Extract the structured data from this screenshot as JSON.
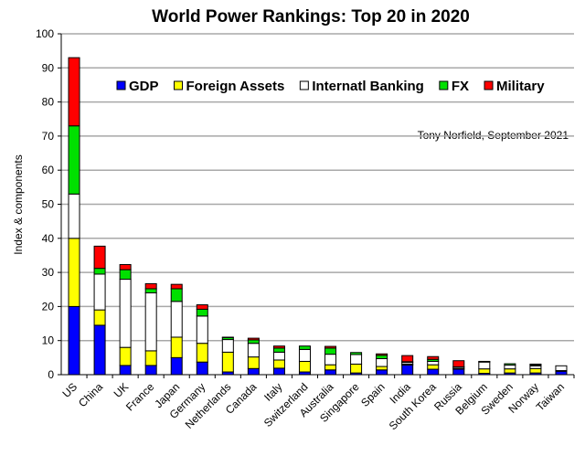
{
  "chart_data": {
    "type": "bar",
    "stacked": true,
    "title": "World Power Rankings: Top 20 in 2020",
    "xlabel": "",
    "ylabel": "Index & components",
    "ylim": [
      0,
      100
    ],
    "yticks": [
      0,
      10,
      20,
      30,
      40,
      50,
      60,
      70,
      80,
      90,
      100
    ],
    "grid": true,
    "legend_placement": "top-right",
    "annotation": "Tony Norfield, September 2021",
    "categories": [
      "US",
      "China",
      "UK",
      "France",
      "Japan",
      "Germany",
      "Netherlands",
      "Canada",
      "Italy",
      "Switzerland",
      "Australia",
      "Singapore",
      "Spain",
      "India",
      "South Korea",
      "Russia",
      "Belgium",
      "Sweden",
      "Norway",
      "Taiwan"
    ],
    "series": [
      {
        "name": "GDP",
        "color": "#0000ff",
        "values": [
          20,
          14.5,
          2.7,
          2.7,
          5,
          3.7,
          0.8,
          1.8,
          1.9,
          0.8,
          1.4,
          0.5,
          1.4,
          2.8,
          1.6,
          1.6,
          0.4,
          0.5,
          0.5,
          1.0
        ]
      },
      {
        "name": "Foreign Assets",
        "color": "#ffff00",
        "values": [
          20,
          4.5,
          5.3,
          4.3,
          6,
          5.5,
          5.8,
          3.4,
          2.4,
          3.1,
          1.5,
          2.6,
          1.0,
          0.3,
          1.3,
          0.2,
          1.3,
          1.2,
          1.3,
          0.2
        ]
      },
      {
        "name": "Internatl Banking",
        "color": "#ffffff",
        "values": [
          13,
          10.5,
          20,
          17,
          10.5,
          8,
          3.7,
          4,
          2.3,
          3.5,
          3.1,
          2.8,
          2.3,
          0.5,
          1.0,
          0.4,
          2.0,
          1.1,
          0.8,
          1.4
        ]
      },
      {
        "name": "FX",
        "color": "#00e000",
        "values": [
          20,
          1.7,
          2.8,
          1.2,
          3.7,
          2,
          0.6,
          1,
          1.2,
          1.0,
          1.8,
          0.6,
          1.0,
          0.2,
          0.6,
          0.1,
          0.1,
          0.4,
          0.3,
          0
        ]
      },
      {
        "name": "Military",
        "color": "#ff0000",
        "values": [
          20,
          6.5,
          1.5,
          1.5,
          1.3,
          1.3,
          0.1,
          0.5,
          0.6,
          0,
          0.5,
          0,
          0.4,
          1.8,
          0.8,
          1.8,
          0.1,
          0,
          0.2,
          0
        ]
      }
    ]
  }
}
